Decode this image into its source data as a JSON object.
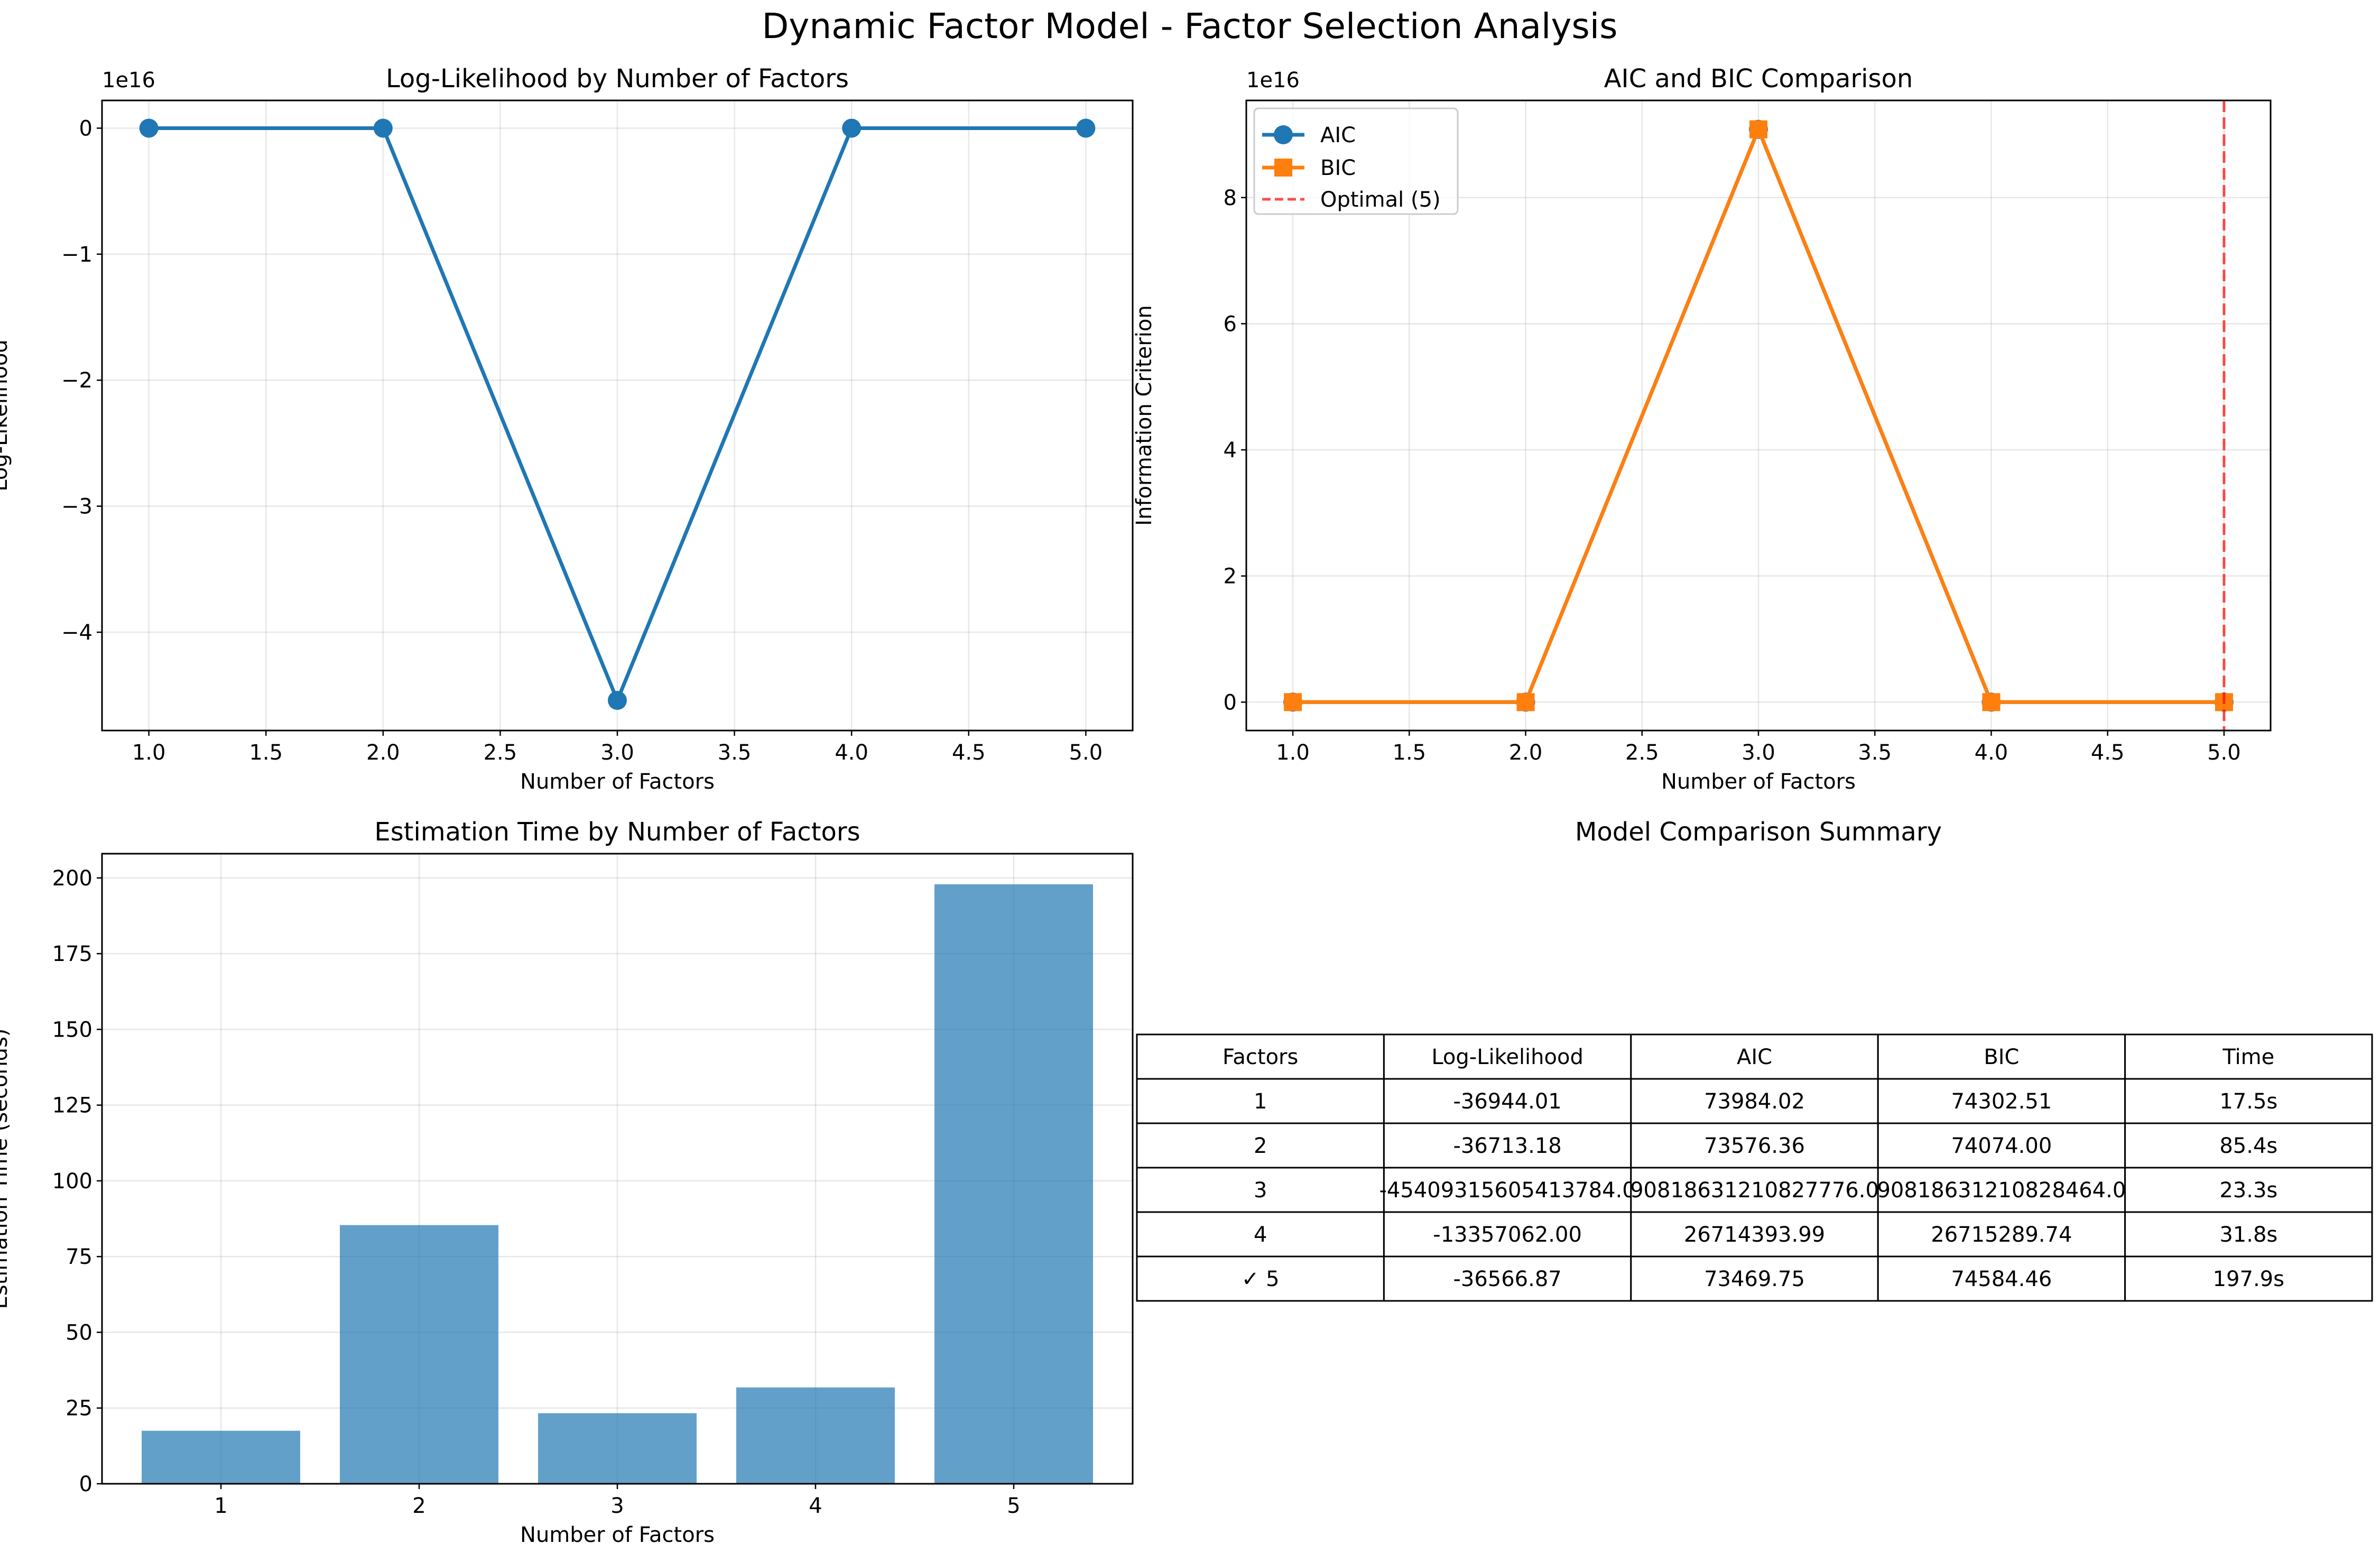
{
  "figure": {
    "title": "Dynamic Factor Model - Factor Selection Analysis"
  },
  "chart_data": [
    {
      "type": "line",
      "title": "Log-Likelihood by Number of Factors",
      "xlabel": "Number of Factors",
      "ylabel": "Log-Likelihood",
      "offset_text": "1e16",
      "x": [
        1,
        2,
        3,
        4,
        5
      ],
      "series": [
        {
          "values": [
            -3.694401e-12,
            -3.671318e-12,
            -4.5409315605,
            -1.3357062e-09,
            -3.656687e-12
          ],
          "color": "#1f77b4",
          "marker": "circle"
        }
      ],
      "xlim": [
        0.8,
        5.2
      ],
      "ylim": [
        -4.78,
        0.22
      ],
      "xticks": [
        1.0,
        1.5,
        2.0,
        2.5,
        3.0,
        3.5,
        4.0,
        4.5,
        5.0
      ],
      "xtick_labels": [
        "1.0",
        "1.5",
        "2.0",
        "2.5",
        "3.0",
        "3.5",
        "4.0",
        "4.5",
        "5.0"
      ],
      "yticks": [
        0,
        -1,
        -2,
        -3,
        -4
      ],
      "ytick_labels": [
        "0",
        "−1",
        "−2",
        "−3",
        "−4"
      ],
      "grid": true
    },
    {
      "type": "line",
      "title": "AIC and BIC Comparison",
      "xlabel": "Number of Factors",
      "ylabel": "Information Criterion",
      "offset_text": "1e16",
      "x": [
        1,
        2,
        3,
        4,
        5
      ],
      "series": [
        {
          "name": "AIC",
          "values": [
            7.398402e-12,
            7.357636e-12,
            9.0818631211,
            2.671439399e-09,
            7.346975e-12
          ],
          "color": "#1f77b4",
          "marker": "circle"
        },
        {
          "name": "BIC",
          "values": [
            7.430251e-12,
            7.4074e-12,
            9.0818631211,
            2.671528974e-09,
            7.458446e-12
          ],
          "color": "#ff7f0e",
          "marker": "square"
        }
      ],
      "vline": {
        "label": "Optimal (5)",
        "x": 5,
        "color": "#ff0000",
        "style": "dashed"
      },
      "legend": "top-left",
      "xlim": [
        0.8,
        5.2
      ],
      "ylim": [
        -0.45,
        9.54
      ],
      "xticks": [
        1.0,
        1.5,
        2.0,
        2.5,
        3.0,
        3.5,
        4.0,
        4.5,
        5.0
      ],
      "xtick_labels": [
        "1.0",
        "1.5",
        "2.0",
        "2.5",
        "3.0",
        "3.5",
        "4.0",
        "4.5",
        "5.0"
      ],
      "yticks": [
        0,
        2,
        4,
        6,
        8
      ],
      "ytick_labels": [
        "0",
        "2",
        "4",
        "6",
        "8"
      ],
      "grid": true
    },
    {
      "type": "bar",
      "title": "Estimation Time by Number of Factors",
      "xlabel": "Number of Factors",
      "ylabel": "Estimation Time (seconds)",
      "categories": [
        "1",
        "2",
        "3",
        "4",
        "5"
      ],
      "values": [
        17.5,
        85.4,
        23.3,
        31.8,
        197.9
      ],
      "color": "#1f77b4",
      "ylim": [
        0,
        208
      ],
      "yticks": [
        0,
        25,
        50,
        75,
        100,
        125,
        150,
        175,
        200
      ],
      "ytick_labels": [
        "0",
        "25",
        "50",
        "75",
        "100",
        "125",
        "150",
        "175",
        "200"
      ],
      "grid": true
    },
    {
      "type": "table",
      "title": "Model Comparison Summary",
      "columns": [
        "Factors",
        "Log-Likelihood",
        "AIC",
        "BIC",
        "Time"
      ],
      "rows": [
        [
          "1",
          "-36944.01",
          "73984.02",
          "74302.51",
          "17.5s"
        ],
        [
          "2",
          "-36713.18",
          "73576.36",
          "74074.00",
          "85.4s"
        ],
        [
          "3",
          "-45409315605413784.0",
          "90818631210827776.0",
          "90818631210828464.0",
          "23.3s"
        ],
        [
          "4",
          "-13357062.00",
          "26714393.99",
          "26715289.74",
          "31.8s"
        ],
        [
          "✓ 5",
          "-36566.87",
          "73469.75",
          "74584.46",
          "197.9s"
        ]
      ]
    }
  ]
}
